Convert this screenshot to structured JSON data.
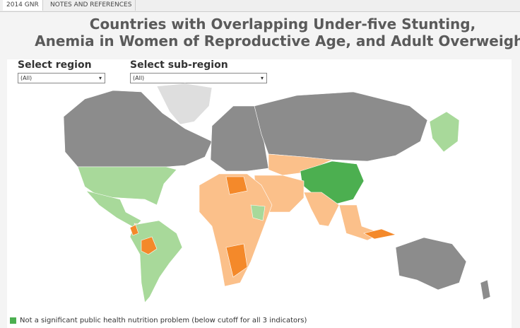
{
  "tabs": [
    "2014 GNR",
    "NOTES AND REFERENCES"
  ],
  "title": [
    "Countries with Overlapping Under-five Stunting,",
    "Anemia in Women of Reproductive Age, and Adult Overweight"
  ],
  "filters": [
    {
      "label": "Select region",
      "value": "(All)"
    },
    {
      "label": "Select sub-region",
      "value": "(All)"
    }
  ],
  "legend": [
    "Not a significant public health nutrition problem (below cutoff for all 3 indicators)"
  ]
}
